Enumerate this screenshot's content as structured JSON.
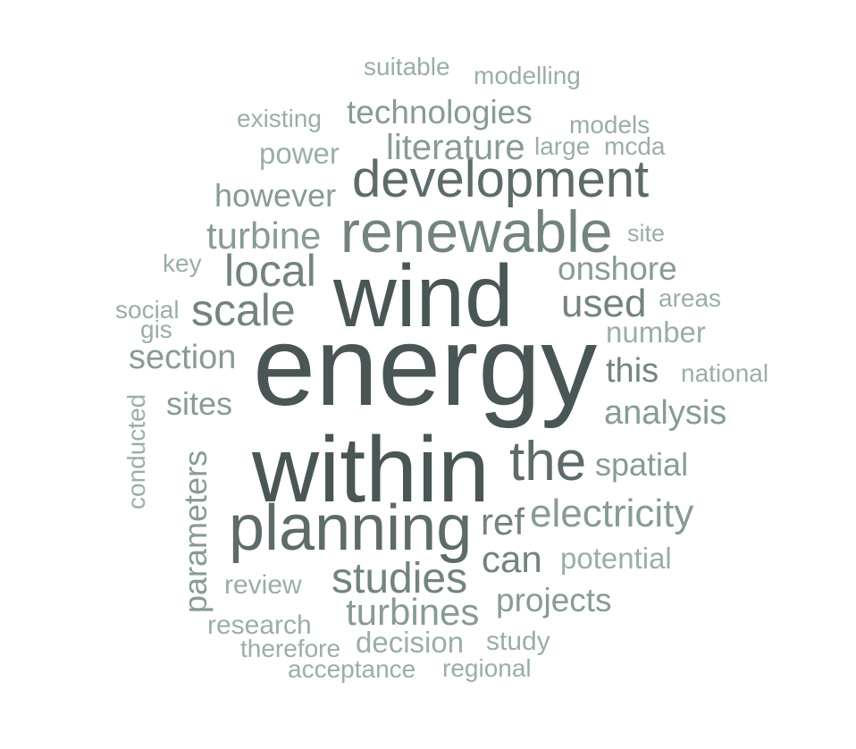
{
  "words": {
    "energy": "energy",
    "wind": "wind",
    "within": "within",
    "planning": "planning",
    "renewable": "renewable",
    "development": "development",
    "the": "the",
    "local": "local",
    "scale": "scale",
    "studies": "studies",
    "electricity": "electricity",
    "turbines": "turbines",
    "turbine": "turbine",
    "literature": "literature",
    "technologies": "technologies",
    "onshore": "onshore",
    "used": "used",
    "analysis": "analysis",
    "can": "can",
    "projects": "projects",
    "section": "section",
    "ref": "ref",
    "spatial": "spatial",
    "this": "this",
    "however": "however",
    "sites": "sites",
    "parameters": "parameters",
    "decision": "decision",
    "number": "number",
    "potential": "potential",
    "power": "power",
    "research": "research",
    "study": "study",
    "review": "review",
    "national": "national",
    "existing": "existing",
    "modelling": "modelling",
    "suitable": "suitable",
    "models": "models",
    "large": "large",
    "mcda": "mcda",
    "site": "site",
    "areas": "areas",
    "key": "key",
    "social": "social",
    "gis": "gis",
    "conducted": "conducted",
    "therefore": "therefore",
    "acceptance": "acceptance",
    "regional": "regional"
  },
  "colors": [
    "#4a5656",
    "#5d6b6a",
    "#728380",
    "#879b97",
    "#9aaea9"
  ]
}
